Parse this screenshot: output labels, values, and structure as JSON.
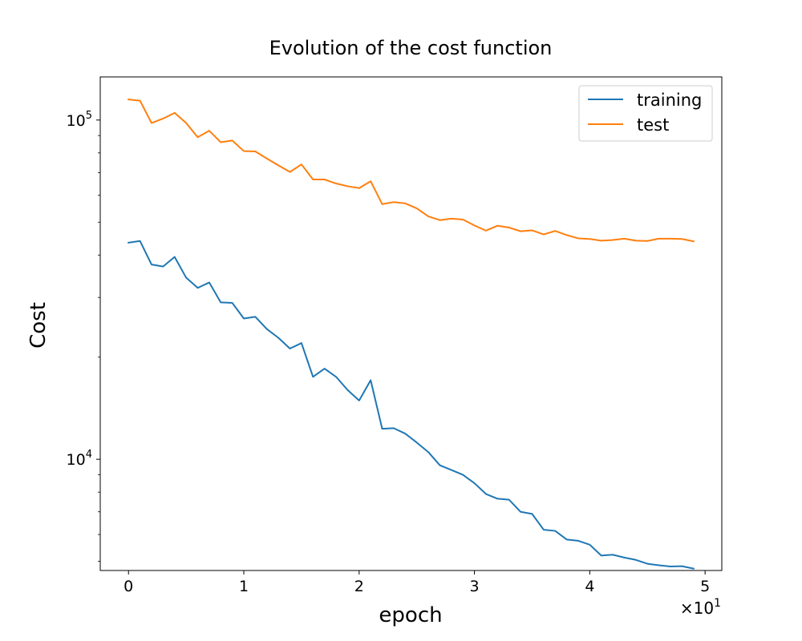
{
  "chart_data": {
    "type": "line",
    "title": "Evolution of the cost function",
    "xlabel": "epoch",
    "ylabel": "Cost",
    "x_tick_labels": [
      "0",
      "1",
      "2",
      "3",
      "4",
      "5"
    ],
    "x_offset_label": "×10",
    "x_offset_exponent": "1",
    "y_tick_base": "10",
    "y_tick_exponents": [
      "4",
      "5"
    ],
    "yscale": "log",
    "xlim": [
      -2.45,
      51.45
    ],
    "ylim": [
      4700,
      134000
    ],
    "legend_position": "top-right",
    "grid": false,
    "series": [
      {
        "name": "training",
        "color": "#1f77b4",
        "x": [
          0,
          1,
          2,
          3,
          4,
          5,
          6,
          7,
          8,
          9,
          10,
          11,
          12,
          13,
          14,
          15,
          16,
          17,
          18,
          19,
          20,
          21,
          22,
          23,
          24,
          25,
          26,
          27,
          28,
          29,
          30,
          31,
          32,
          33,
          34,
          35,
          36,
          37,
          38,
          39,
          40,
          41,
          42,
          43,
          44,
          45,
          46,
          47,
          48,
          49
        ],
        "values": [
          43500,
          44000,
          37500,
          37000,
          39500,
          34300,
          32000,
          33200,
          29000,
          28900,
          26000,
          26300,
          24200,
          22800,
          21200,
          22000,
          17500,
          18500,
          17500,
          16000,
          14900,
          17100,
          12300,
          12350,
          11900,
          11200,
          10500,
          9600,
          9300,
          9000,
          8500,
          7900,
          7650,
          7600,
          7000,
          6900,
          6200,
          6150,
          5800,
          5750,
          5600,
          5200,
          5230,
          5130,
          5050,
          4920,
          4870,
          4830,
          4840,
          4760
        ]
      },
      {
        "name": "test",
        "color": "#ff7f0e",
        "x": [
          0,
          1,
          2,
          3,
          4,
          5,
          6,
          7,
          8,
          9,
          10,
          11,
          12,
          13,
          14,
          15,
          16,
          17,
          18,
          19,
          20,
          21,
          22,
          23,
          24,
          25,
          26,
          27,
          28,
          29,
          30,
          31,
          32,
          33,
          34,
          35,
          36,
          37,
          38,
          39,
          40,
          41,
          42,
          43,
          44,
          45,
          46,
          47,
          48,
          49
        ],
        "values": [
          115000,
          114000,
          98000,
          101000,
          105000,
          98000,
          89000,
          93000,
          86000,
          87000,
          81000,
          80800,
          77000,
          73500,
          70300,
          74000,
          66800,
          66800,
          65000,
          63800,
          63000,
          66000,
          56500,
          57300,
          56800,
          54900,
          52000,
          50700,
          51200,
          50900,
          48900,
          47200,
          48800,
          48200,
          47000,
          47300,
          46000,
          47100,
          45800,
          44800,
          44600,
          44100,
          44300,
          44700,
          44100,
          44000,
          44700,
          44700,
          44600,
          43900
        ]
      }
    ]
  }
}
